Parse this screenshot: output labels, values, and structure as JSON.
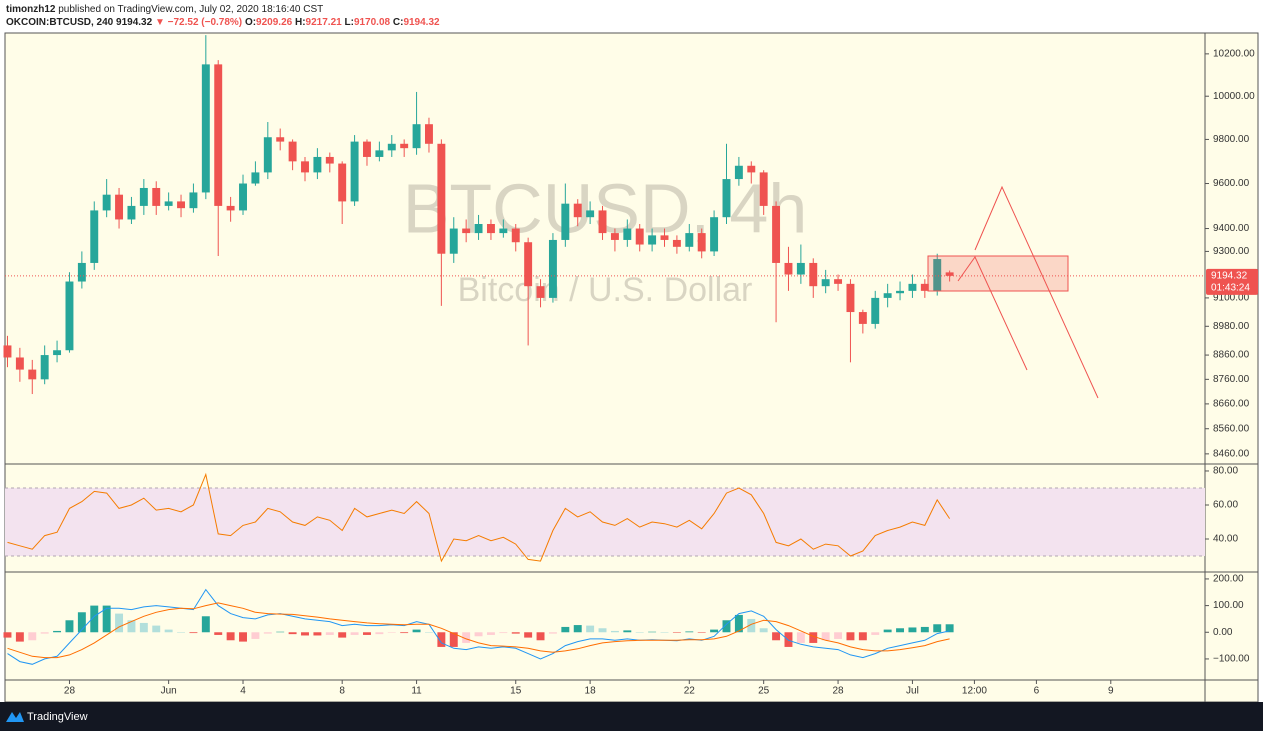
{
  "header": {
    "publisher": "timonzh12",
    "published": "published on TradingView.com, July 02, 2020 18:16:40 CST",
    "symbol": "OKCOIN:BTCUSD, 240",
    "change": "▼ −72.52 (−0.78%)",
    "labels": [
      "O:",
      "H:",
      "L:",
      "C:"
    ]
  },
  "footer": {
    "brand": "TradingView"
  },
  "chart_data": [
    {
      "type": "candlestick",
      "watermark": {
        "symbol": "BTCUSD, 4h",
        "description": "Bitcoin / U.S. Dollar"
      },
      "countdown": "01:43:24",
      "x": [
        -2.5,
        -2,
        -1.5,
        -1,
        -0.5,
        0,
        0.5,
        1,
        1.5,
        2,
        2.5,
        3,
        3.5,
        4,
        4.5,
        5,
        5.5,
        6,
        6.5,
        7,
        7.5,
        8,
        8.5,
        9,
        9.5,
        10,
        10.5,
        11,
        11.5,
        12,
        12.5,
        13,
        13.5,
        14,
        14.5,
        15,
        15.5,
        16,
        16.5,
        17,
        17.5,
        18,
        18.5,
        19,
        19.5,
        20,
        20.5,
        21,
        21.5,
        22,
        22.5,
        23,
        23.5,
        24,
        24.5,
        25,
        25.5,
        26,
        26.5,
        27,
        27.5,
        28,
        28.5,
        29,
        29.5,
        30,
        30.5,
        31,
        31.5,
        32,
        32.5,
        33,
        33.5,
        34,
        34.5,
        35,
        35.5
      ],
      "open": [
        8900,
        8850,
        8800,
        8760,
        8860,
        8880,
        9170,
        9250,
        9480,
        9550,
        9440,
        9500,
        9580,
        9500,
        9520,
        9490,
        9560,
        10150,
        9500,
        9480,
        9600,
        9650,
        9810,
        9790,
        9700,
        9650,
        9720,
        9690,
        9520,
        9790,
        9720,
        9750,
        9780,
        9760,
        9870,
        9780,
        9290,
        9400,
        9380,
        9420,
        9380,
        9400,
        9340,
        9150,
        9100,
        9350,
        9510,
        9450,
        9480,
        9380,
        9350,
        9400,
        9330,
        9370,
        9350,
        9320,
        9380,
        9300,
        9450,
        9620,
        9680,
        9650,
        9500,
        9250,
        9200,
        9250,
        9150,
        9180,
        9160,
        9040,
        8990,
        9100,
        9120,
        9130,
        9160,
        9130,
        9209.26
      ],
      "high": [
        8940,
        8890,
        8840,
        8900,
        8920,
        9210,
        9300,
        9520,
        9620,
        9580,
        9540,
        9620,
        9610,
        9560,
        9550,
        9600,
        10290,
        10170,
        9540,
        9640,
        9700,
        9880,
        9850,
        9800,
        9720,
        9760,
        9740,
        9700,
        9820,
        9800,
        9790,
        9820,
        9800,
        10020,
        9900,
        9800,
        9450,
        9440,
        9460,
        9440,
        9440,
        9420,
        9360,
        9180,
        9380,
        9600,
        9530,
        9520,
        9500,
        9400,
        9440,
        9420,
        9400,
        9400,
        9370,
        9420,
        9400,
        9480,
        9780,
        9720,
        9700,
        9660,
        9520,
        9320,
        9330,
        9270,
        9220,
        9200,
        9180,
        9050,
        9130,
        9160,
        9170,
        9200,
        9180,
        9290,
        9217.21
      ],
      "low": [
        8810,
        8750,
        8700,
        8740,
        8830,
        8870,
        9140,
        9220,
        9450,
        9400,
        9420,
        9460,
        9460,
        9480,
        9450,
        9470,
        9530,
        9280,
        9430,
        9460,
        9590,
        9620,
        9750,
        9660,
        9610,
        9620,
        9650,
        9420,
        9500,
        9680,
        9700,
        9720,
        9720,
        9730,
        9740,
        9066,
        9250,
        9340,
        9350,
        9350,
        9360,
        9300,
        8900,
        9060,
        9080,
        9320,
        9410,
        9420,
        9350,
        9300,
        9320,
        9300,
        9300,
        9320,
        9290,
        9300,
        9270,
        9280,
        9420,
        9590,
        9600,
        9460,
        8997,
        9130,
        9160,
        9100,
        9120,
        9130,
        8830,
        8950,
        8970,
        9060,
        9090,
        9100,
        9100,
        9110,
        9170.08
      ],
      "close": [
        8850,
        8800,
        8760,
        8860,
        8880,
        9170,
        9250,
        9480,
        9550,
        9440,
        9500,
        9580,
        9500,
        9520,
        9490,
        9560,
        10150,
        9500,
        9480,
        9600,
        9650,
        9810,
        9790,
        9700,
        9650,
        9720,
        9690,
        9520,
        9790,
        9720,
        9750,
        9780,
        9760,
        9870,
        9780,
        9290,
        9400,
        9380,
        9420,
        9380,
        9400,
        9340,
        9150,
        9100,
        9350,
        9510,
        9450,
        9480,
        9380,
        9350,
        9400,
        9330,
        9370,
        9350,
        9320,
        9380,
        9300,
        9450,
        9620,
        9680,
        9650,
        9500,
        9250,
        9200,
        9250,
        9150,
        9180,
        9160,
        9040,
        8990,
        9100,
        9120,
        9130,
        9160,
        9130,
        9266.84,
        9194.32
      ],
      "up_color": "#26a69a",
      "down_color": "#ef5350",
      "xlim": [
        -2.6,
        45.8
      ],
      "xticks": [
        {
          "value": 0,
          "label": "28"
        },
        {
          "value": 4,
          "label": "Jun"
        },
        {
          "value": 7,
          "label": "4"
        },
        {
          "value": 11,
          "label": "8"
        },
        {
          "value": 14,
          "label": "11"
        },
        {
          "value": 18,
          "label": "15"
        },
        {
          "value": 21,
          "label": "18"
        },
        {
          "value": 25,
          "label": "22"
        },
        {
          "value": 28,
          "label": "25"
        },
        {
          "value": 31,
          "label": "28"
        },
        {
          "value": 34,
          "label": "Jul"
        },
        {
          "value": 36.5,
          "label": "12:00"
        },
        {
          "value": 39,
          "label": "6"
        },
        {
          "value": 42,
          "label": "9"
        }
      ],
      "ylim": [
        8420,
        10300
      ],
      "log_scale": true,
      "yticks": [
        {
          "value": 10200,
          "label": "10200.00"
        },
        {
          "value": 10000,
          "label": "10000.00"
        },
        {
          "value": 9800,
          "label": "9800.00"
        },
        {
          "value": 9600,
          "label": "9600.00"
        },
        {
          "value": 9400,
          "label": "9400.00"
        },
        {
          "value": 9300,
          "label": "9300.00"
        },
        {
          "value": 9100,
          "label": "9100.00"
        },
        {
          "value": 8980,
          "label": "8980.00"
        },
        {
          "value": 8860,
          "label": "8860.00"
        },
        {
          "value": 8760,
          "label": "8760.00"
        },
        {
          "value": 8660,
          "label": "8660.00"
        },
        {
          "value": 8560,
          "label": "8560.00"
        },
        {
          "value": 8460,
          "label": "8460.00"
        }
      ]
    },
    {
      "type": "line",
      "color": "#f57c00",
      "values": [
        38,
        36,
        34,
        42,
        44,
        58,
        62,
        68,
        67,
        58,
        60,
        64,
        57,
        58,
        56,
        60,
        78,
        43,
        42,
        48,
        50,
        58,
        56,
        50,
        48,
        53,
        51,
        45,
        58,
        53,
        55,
        57,
        55,
        62,
        55,
        27,
        40,
        39,
        42,
        39,
        41,
        37,
        28,
        27,
        45,
        58,
        53,
        56,
        50,
        48,
        52,
        47,
        50,
        49,
        47,
        51,
        46,
        55,
        67,
        70,
        66,
        55,
        38,
        36,
        40,
        34,
        37,
        36,
        30,
        33,
        42,
        45,
        47,
        50,
        48,
        63,
        52
      ],
      "band": [
        30,
        70
      ],
      "band_color": "#f3e3ef",
      "ylim": [
        20.6,
        84.1
      ],
      "yticks": [
        {
          "value": 80,
          "label": "80.00"
        },
        {
          "value": 60,
          "label": "60.00"
        },
        {
          "value": 40,
          "label": "40.00"
        }
      ]
    },
    {
      "type": "macd",
      "series": [
        {
          "color": "#2196f3",
          "values": [
            -80,
            -110,
            -120,
            -100,
            -90,
            -40,
            10,
            60,
            90,
            90,
            85,
            95,
            100,
            95,
            90,
            85,
            160,
            100,
            70,
            55,
            50,
            65,
            70,
            60,
            50,
            45,
            40,
            25,
            30,
            25,
            25,
            28,
            25,
            40,
            30,
            -40,
            -60,
            -65,
            -55,
            -60,
            -55,
            -60,
            -80,
            -100,
            -80,
            -50,
            -35,
            -25,
            -25,
            -30,
            -25,
            -30,
            -28,
            -30,
            -32,
            -25,
            -30,
            -15,
            30,
            70,
            80,
            60,
            10,
            -30,
            -45,
            -55,
            -60,
            -65,
            -85,
            -95,
            -80,
            -60,
            -50,
            -40,
            -30,
            -5,
            5
          ]
        },
        {
          "color": "#ff6d00",
          "values": [
            -60,
            -75,
            -90,
            -95,
            -95,
            -85,
            -65,
            -40,
            -10,
            20,
            40,
            60,
            75,
            85,
            90,
            88,
            100,
            110,
            100,
            90,
            75,
            70,
            68,
            67,
            62,
            57,
            50,
            45,
            40,
            35,
            32,
            30,
            28,
            30,
            30,
            15,
            -5,
            -25,
            -40,
            -50,
            -52,
            -55,
            -60,
            -70,
            -75,
            -70,
            -62,
            -50,
            -40,
            -35,
            -32,
            -30,
            -30,
            -30,
            -30,
            -28,
            -28,
            -25,
            -15,
            5,
            30,
            45,
            40,
            25,
            5,
            -15,
            -30,
            -40,
            -55,
            -65,
            -70,
            -70,
            -65,
            -58,
            -50,
            -35,
            -25
          ]
        }
      ],
      "histogram": {
        "colors": [
          "#26a69a",
          "#b2dfdb",
          "#ffcdd2",
          "#ef5350"
        ],
        "values": [
          -20,
          -35,
          -30,
          -5,
          5,
          45,
          75,
          100,
          100,
          70,
          45,
          35,
          25,
          10,
          0,
          -3,
          60,
          -10,
          -30,
          -35,
          -25,
          -5,
          2,
          -7,
          -12,
          -12,
          -10,
          -20,
          -10,
          -10,
          -7,
          -2,
          -3,
          10,
          0,
          -55,
          -55,
          -40,
          -15,
          -10,
          -3,
          -5,
          -20,
          -30,
          -5,
          20,
          27,
          25,
          15,
          5,
          7,
          0,
          2,
          0,
          -2,
          3,
          -2,
          10,
          45,
          65,
          50,
          15,
          -30,
          -55,
          -40,
          -40,
          -30,
          -25,
          -30,
          -30,
          -10,
          10,
          15,
          18,
          20,
          30,
          30
        ]
      },
      "ylim": [
        -179,
        226
      ],
      "yticks": [
        {
          "value": 200,
          "label": "200.00"
        },
        {
          "value": 100,
          "label": "100.00"
        },
        {
          "value": 0,
          "label": "0.00"
        },
        {
          "value": -100,
          "label": "−100.00"
        }
      ]
    }
  ]
}
